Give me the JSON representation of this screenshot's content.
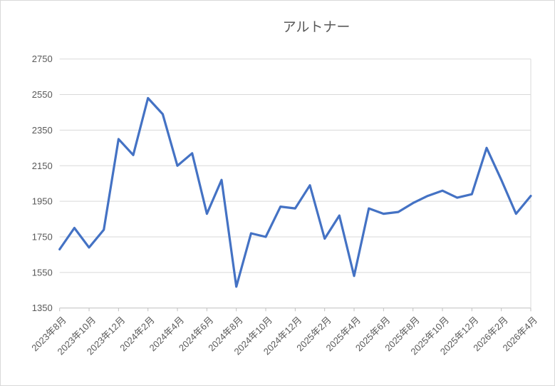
{
  "chart_data": {
    "type": "line",
    "title": "アルトナー",
    "x": [
      "2023年8月",
      "2023年9月",
      "2023年10月",
      "2023年11月",
      "2023年12月",
      "2024年1月",
      "2024年2月",
      "2024年3月",
      "2024年4月",
      "2024年5月",
      "2024年6月",
      "2024年7月",
      "2024年8月",
      "2024年9月",
      "2024年10月",
      "2024年11月",
      "2024年12月",
      "2025年1月",
      "2025年2月",
      "2025年3月",
      "2025年4月",
      "2025年5月",
      "2025年6月",
      "2025年7月",
      "2025年8月",
      "2025年9月",
      "2025年10月",
      "2025年11月",
      "2025年12月",
      "2026年1月",
      "2026年2月",
      "2026年3月",
      "2026年4月"
    ],
    "values": [
      1680,
      1800,
      1690,
      1790,
      2300,
      2210,
      2530,
      2440,
      2150,
      2220,
      1880,
      2070,
      1470,
      1770,
      1750,
      1920,
      1910,
      2040,
      1740,
      1870,
      1530,
      1910,
      1880,
      1890,
      1940,
      1980,
      2010,
      1970,
      1990,
      2250,
      2070,
      1880,
      1980
    ],
    "visible_x_ticks": [
      "2023年8月",
      "2023年10月",
      "2023年12月",
      "2024年2月",
      "2024年4月",
      "2024年6月",
      "2024年8月",
      "2024年10月",
      "2024年12月",
      "2025年2月",
      "2025年4月",
      "2025年6月",
      "2025年8月",
      "2025年10月",
      "2025年12月",
      "2026年2月",
      "2026年4月"
    ],
    "xtick_every": 2,
    "ylim": [
      1350,
      2750
    ],
    "ytick_step": 200,
    "ytick_labels": [
      "1350",
      "1550",
      "1750",
      "1950",
      "2150",
      "2350",
      "2550",
      "2750"
    ],
    "grid": true,
    "legend": false,
    "xlabel": "",
    "ylabel": "",
    "series_color": "#4472c4",
    "gridline_color": "#d9d9d9",
    "axis_line_color": "#bfbfbf",
    "label_color": "#595959"
  }
}
